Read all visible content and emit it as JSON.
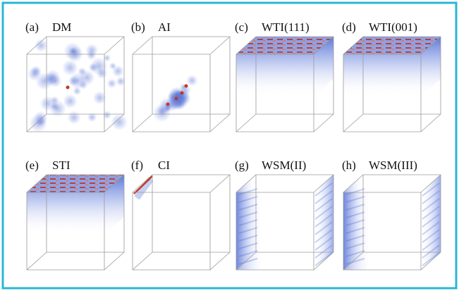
{
  "panels": [
    {
      "tag": "(a)",
      "name": "DM"
    },
    {
      "tag": "(b)",
      "name": "AI"
    },
    {
      "tag": "(c)",
      "name": "WTI(111)"
    },
    {
      "tag": "(d)",
      "name": "WTI(001)"
    },
    {
      "tag": "(e)",
      "name": "STI"
    },
    {
      "tag": "(f)",
      "name": "CI"
    },
    {
      "tag": "(g)",
      "name": "WSM(II)"
    },
    {
      "tag": "(h)",
      "name": "WSM(III)"
    }
  ]
}
